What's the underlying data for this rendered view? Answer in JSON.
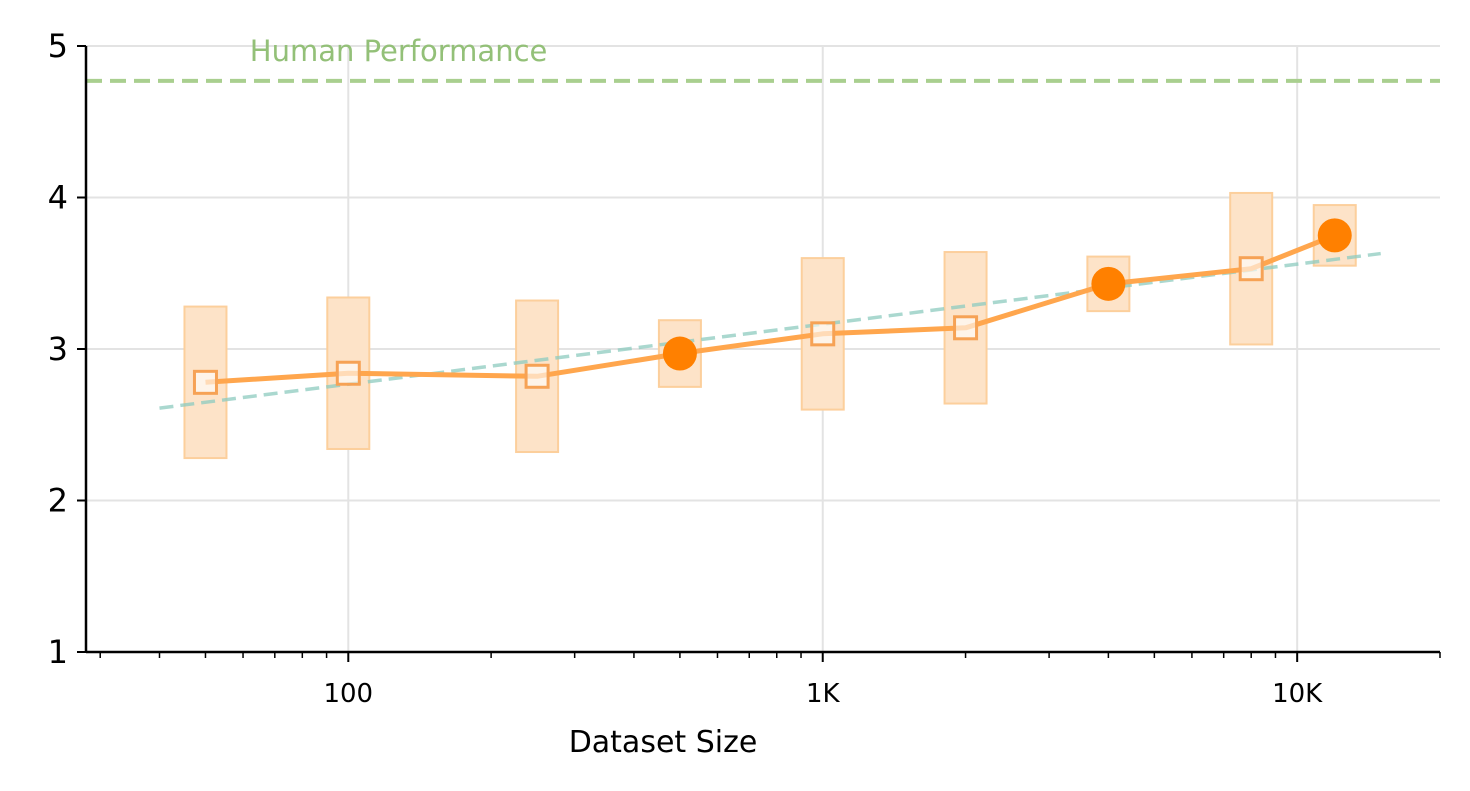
{
  "chart_data": {
    "type": "line",
    "xlabel": "Dataset Size",
    "x_scale": "log",
    "xlim": [
      28,
      20000
    ],
    "ylim": [
      1,
      5
    ],
    "y_ticks": [
      1,
      2,
      3,
      4,
      5
    ],
    "x_ticks": [
      {
        "value": 100,
        "label": "100"
      },
      {
        "value": 1000,
        "label": "1K"
      },
      {
        "value": 10000,
        "label": "10K"
      }
    ],
    "grid": true,
    "legend": "none",
    "reference_line": {
      "label": "Human Performance",
      "y": 4.77,
      "color": "#a9cf8f"
    },
    "trend_line": {
      "x": [
        40,
        15000
      ],
      "y": [
        2.61,
        3.63
      ],
      "color": "#8ecbc0"
    },
    "series": [
      {
        "color": "#ff8c1a",
        "points": [
          {
            "x": 50,
            "y": 2.78,
            "low": 2.28,
            "high": 3.28,
            "marker": "square"
          },
          {
            "x": 100,
            "y": 2.84,
            "low": 2.34,
            "high": 3.34,
            "marker": "square"
          },
          {
            "x": 250,
            "y": 2.82,
            "low": 2.32,
            "high": 3.32,
            "marker": "square"
          },
          {
            "x": 500,
            "y": 2.97,
            "low": 2.75,
            "high": 3.19,
            "marker": "circle"
          },
          {
            "x": 1000,
            "y": 3.1,
            "low": 2.6,
            "high": 3.6,
            "marker": "square"
          },
          {
            "x": 2000,
            "y": 3.14,
            "low": 2.64,
            "high": 3.64,
            "marker": "square"
          },
          {
            "x": 4000,
            "y": 3.43,
            "low": 3.25,
            "high": 3.61,
            "marker": "circle"
          },
          {
            "x": 8000,
            "y": 3.53,
            "low": 3.03,
            "high": 4.03,
            "marker": "square"
          },
          {
            "x": 12000,
            "y": 3.75,
            "low": 3.55,
            "high": 3.95,
            "marker": "circle"
          }
        ]
      }
    ]
  }
}
